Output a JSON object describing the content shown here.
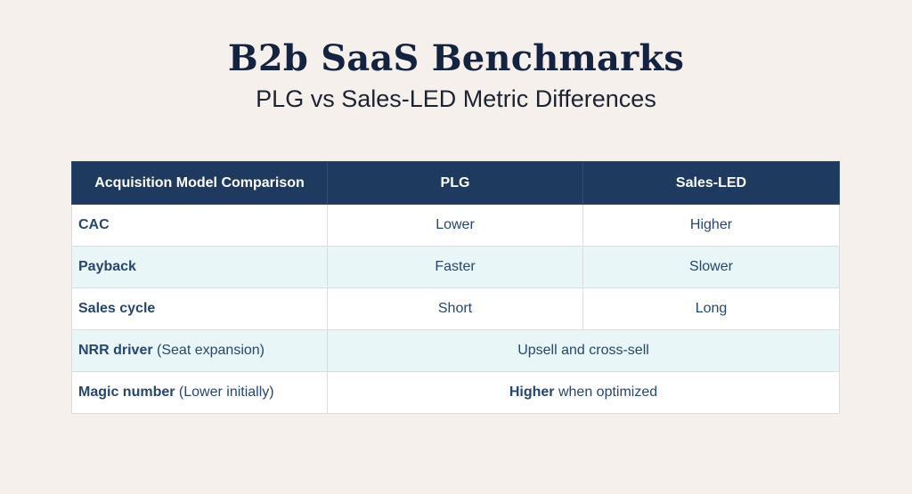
{
  "title": "B2b SaaS Benchmarks",
  "subtitle": "PLG vs Sales-LED Metric Differences",
  "table": {
    "headers": [
      "Acquisition Model Comparison",
      "PLG",
      "Sales-LED"
    ],
    "rows": [
      {
        "label": "CAC",
        "plg": "Lower",
        "sales_led": "Higher"
      },
      {
        "label": "Payback",
        "plg": "Faster",
        "sales_led": "Slower"
      },
      {
        "label": "Sales cycle",
        "plg": "Short",
        "sales_led": "Long"
      },
      {
        "label": "NRR driver",
        "note": "(Seat expansion)",
        "merged": "Upsell and cross-sell"
      },
      {
        "label": "Magic number",
        "note": "(Lower initially)",
        "merged_bold": "Higher",
        "merged_rest": "when optimized"
      }
    ]
  },
  "colors": {
    "background": "#f5f0eb",
    "header_bg": "#1f3a5f",
    "row_white": "#ffffff",
    "row_tint": "#e9f6f8",
    "text": "#25466e"
  }
}
